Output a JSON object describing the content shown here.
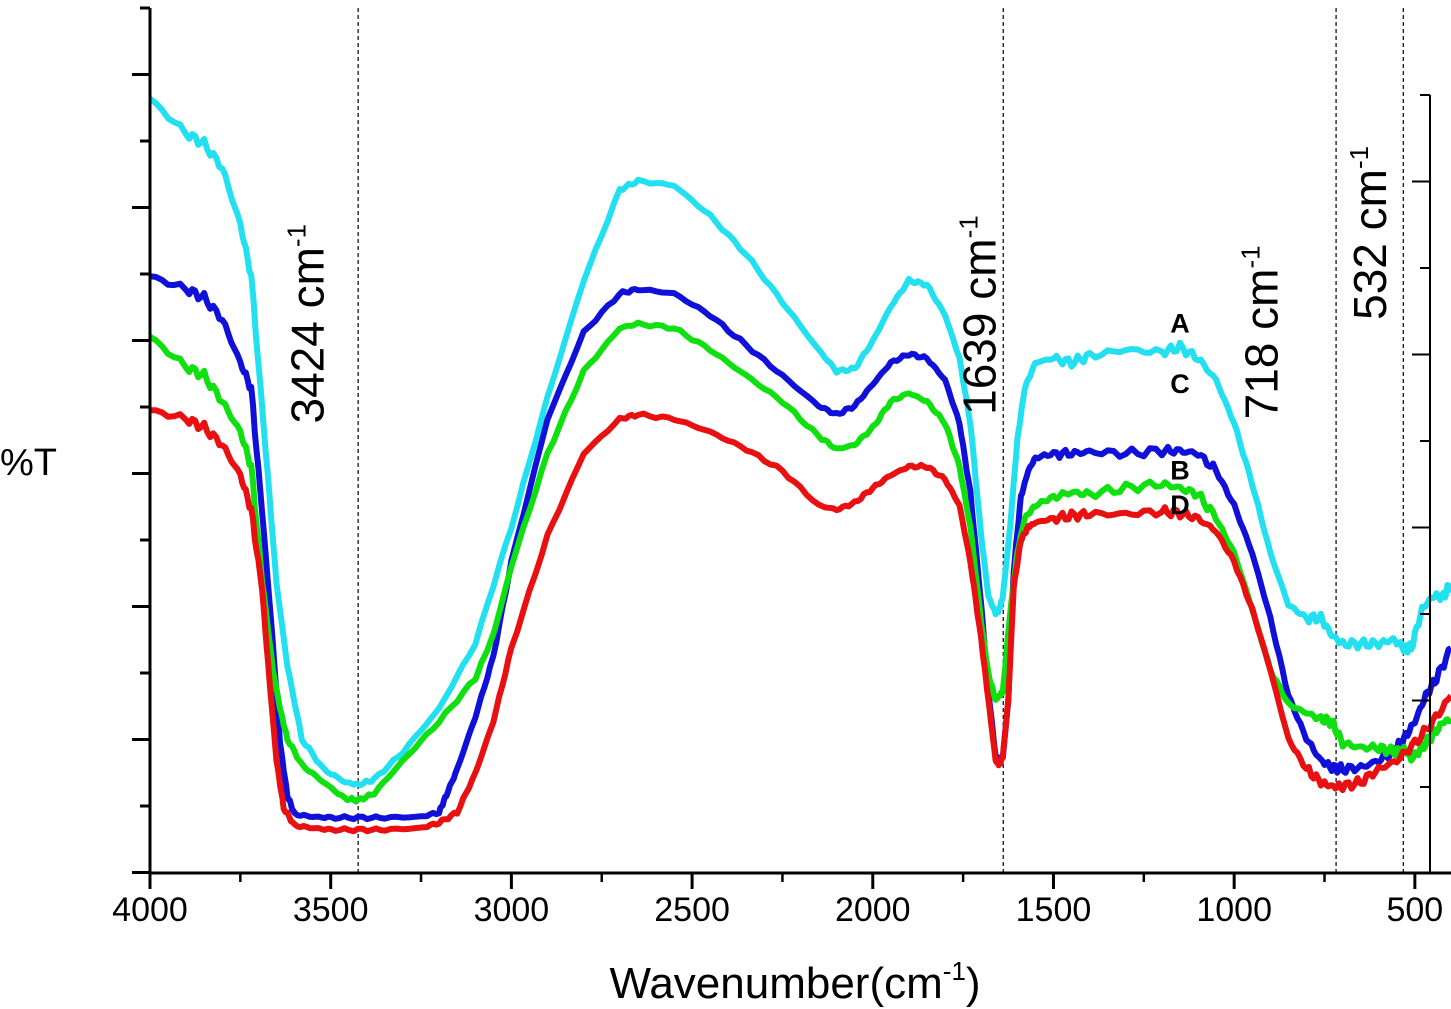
{
  "chart_data": {
    "type": "line",
    "xlabel": "Wavenumber(cm",
    "xlabel_sup": "-1",
    "xlabel_end": ")",
    "ylabel": "%T",
    "xlim": [
      4000,
      400
    ],
    "ylim": [
      0,
      100
    ],
    "x_ticks": [
      "4000",
      "3500",
      "3000",
      "2500",
      "2000",
      "1500",
      "1000",
      "500"
    ],
    "x_tick_values": [
      4000,
      3500,
      3000,
      2500,
      2000,
      1500,
      1000,
      500
    ],
    "colors": {
      "A": "#22e0f0",
      "B": "#1010d8",
      "C": "#10e010",
      "D": "#e81010"
    },
    "series": [
      {
        "name": "A",
        "color": "#22e0f0",
        "label_at": [
          1150,
          62.5
        ],
        "x": [
          4000,
          3900,
          3850,
          3800,
          3750,
          3720,
          3680,
          3650,
          3620,
          3580,
          3520,
          3460,
          3424,
          3380,
          3300,
          3200,
          3100,
          3000,
          2900,
          2800,
          2700,
          2650,
          2550,
          2450,
          2350,
          2250,
          2150,
          2100,
          2050,
          2000,
          1950,
          1900,
          1850,
          1800,
          1760,
          1730,
          1700,
          1680,
          1660,
          1650,
          1640,
          1620,
          1600,
          1580,
          1550,
          1500,
          1450,
          1400,
          1300,
          1200,
          1150,
          1100,
          1050,
          1000,
          950,
          900,
          850,
          800,
          760,
          730,
          700,
          650,
          600,
          560,
          530,
          510,
          480,
          450,
          420,
          400
        ],
        "y": [
          89.5,
          85.5,
          84.3,
          81.5,
          75.0,
          69.0,
          49.0,
          33.5,
          24.0,
          15.5,
          12.0,
          10.5,
          10.2,
          10.8,
          14.0,
          19.0,
          26.5,
          40.0,
          55.0,
          68.5,
          79.0,
          80.0,
          79.5,
          76.0,
          71.5,
          66.0,
          60.5,
          58.0,
          58.3,
          61.5,
          65.5,
          68.5,
          68.0,
          64.5,
          59.5,
          52.0,
          39.0,
          32.0,
          30.0,
          30.5,
          32.0,
          40.0,
          50.0,
          56.0,
          59.0,
          59.5,
          59.0,
          59.8,
          60.5,
          60.2,
          60.8,
          59.5,
          57.0,
          52.0,
          45.0,
          37.0,
          31.0,
          29.5,
          29.5,
          27.5,
          26.5,
          26.5,
          26.5,
          27.0,
          26.0,
          26.0,
          30.5,
          32.0,
          32.0,
          33.5
        ]
      },
      {
        "name": "B",
        "color": "#1010d8",
        "label_at": [
          1150,
          45.5
        ],
        "x": [
          4000,
          3900,
          3850,
          3800,
          3750,
          3720,
          3690,
          3660,
          3640,
          3620,
          3600,
          3550,
          3500,
          3424,
          3350,
          3250,
          3200,
          3180,
          3150,
          3100,
          3050,
          3000,
          2900,
          2800,
          2700,
          2650,
          2550,
          2450,
          2350,
          2250,
          2150,
          2100,
          2050,
          2000,
          1950,
          1900,
          1850,
          1800,
          1760,
          1730,
          1700,
          1680,
          1660,
          1650,
          1640,
          1625,
          1610,
          1590,
          1570,
          1550,
          1500,
          1450,
          1400,
          1300,
          1200,
          1150,
          1100,
          1050,
          1000,
          950,
          900,
          850,
          800,
          760,
          730,
          700,
          650,
          600,
          560,
          530,
          500,
          470,
          440,
          400
        ],
        "y": [
          69.0,
          67.5,
          66.5,
          64.0,
          59.0,
          56.0,
          42.0,
          26.5,
          15.0,
          9.0,
          6.8,
          6.5,
          6.4,
          6.4,
          6.4,
          6.5,
          7.0,
          9.0,
          12.0,
          18.0,
          25.0,
          36.0,
          52.5,
          62.5,
          67.0,
          67.5,
          67.0,
          64.5,
          61.0,
          57.5,
          54.0,
          53.0,
          54.0,
          56.5,
          59.0,
          60.0,
          59.5,
          57.0,
          52.0,
          44.0,
          31.0,
          21.0,
          13.5,
          13.0,
          13.5,
          20.0,
          35.0,
          43.5,
          46.5,
          48.0,
          48.5,
          48.5,
          48.7,
          48.5,
          48.8,
          48.8,
          48.5,
          46.5,
          42.5,
          37.0,
          29.5,
          20.5,
          15.5,
          13.0,
          12.2,
          12.0,
          12.2,
          13.0,
          14.0,
          15.5,
          17.5,
          20.5,
          22.5,
          26.0
        ]
      },
      {
        "name": "C",
        "color": "#10e010",
        "label_at": [
          1150,
          55.5
        ],
        "x": [
          4000,
          3900,
          3850,
          3800,
          3750,
          3720,
          3690,
          3660,
          3640,
          3620,
          3580,
          3520,
          3460,
          3424,
          3380,
          3300,
          3200,
          3100,
          3050,
          3000,
          2900,
          2800,
          2700,
          2650,
          2550,
          2450,
          2350,
          2250,
          2150,
          2100,
          2050,
          2000,
          1950,
          1900,
          1850,
          1800,
          1760,
          1730,
          1700,
          1680,
          1660,
          1650,
          1640,
          1620,
          1600,
          1580,
          1550,
          1500,
          1450,
          1400,
          1300,
          1200,
          1150,
          1100,
          1050,
          1000,
          950,
          900,
          850,
          800,
          760,
          730,
          700,
          650,
          600,
          560,
          530,
          510,
          480,
          450,
          420,
          400
        ],
        "y": [
          62.0,
          58.5,
          57.5,
          54.5,
          51.0,
          47.0,
          34.0,
          23.5,
          19.0,
          15.5,
          12.5,
          10.5,
          8.6,
          8.4,
          9.2,
          13.0,
          17.5,
          22.5,
          27.5,
          35.5,
          48.5,
          58.0,
          63.0,
          63.5,
          63.0,
          60.5,
          57.5,
          54.5,
          50.5,
          49.0,
          49.5,
          51.5,
          54.5,
          55.5,
          54.5,
          52.0,
          47.0,
          40.0,
          29.0,
          23.0,
          20.0,
          20.5,
          21.0,
          30.0,
          37.0,
          41.0,
          42.5,
          43.5,
          44.0,
          43.8,
          44.5,
          45.0,
          44.5,
          43.8,
          41.0,
          37.0,
          30.5,
          23.5,
          19.5,
          18.5,
          17.8,
          17.5,
          15.0,
          14.5,
          14.5,
          14.0,
          14.3,
          13.2,
          14.5,
          16.0,
          17.5,
          17.8
        ]
      },
      {
        "name": "D",
        "color": "#e81010",
        "label_at": [
          1150,
          41.5
        ],
        "x": [
          4000,
          3900,
          3850,
          3800,
          3750,
          3720,
          3690,
          3670,
          3650,
          3630,
          3600,
          3550,
          3500,
          3424,
          3350,
          3250,
          3200,
          3150,
          3100,
          3050,
          3000,
          2900,
          2800,
          2700,
          2650,
          2550,
          2450,
          2350,
          2250,
          2150,
          2100,
          2050,
          2000,
          1950,
          1900,
          1850,
          1800,
          1760,
          1730,
          1700,
          1680,
          1660,
          1650,
          1640,
          1625,
          1610,
          1590,
          1570,
          1550,
          1500,
          1450,
          1400,
          1300,
          1200,
          1150,
          1100,
          1050,
          1000,
          950,
          900,
          850,
          800,
          760,
          730,
          700,
          650,
          600,
          550,
          500,
          450,
          400
        ],
        "y": [
          53.5,
          52.5,
          51.5,
          49.5,
          46.0,
          42.0,
          33.0,
          22.5,
          13.0,
          7.5,
          5.5,
          5.2,
          5.0,
          5.0,
          5.0,
          5.2,
          5.8,
          7.0,
          11.5,
          17.5,
          26.0,
          39.0,
          48.5,
          52.5,
          53.0,
          52.5,
          51.0,
          49.0,
          46.5,
          42.5,
          42.0,
          42.8,
          44.5,
          46.0,
          47.0,
          47.0,
          45.5,
          42.5,
          36.0,
          27.0,
          20.0,
          13.0,
          12.5,
          13.5,
          20.0,
          33.0,
          38.5,
          40.0,
          40.5,
          41.0,
          41.3,
          41.5,
          41.5,
          41.8,
          41.6,
          41.0,
          39.5,
          36.0,
          30.5,
          23.5,
          15.5,
          12.0,
          10.5,
          10.0,
          10.0,
          10.5,
          12.0,
          13.0,
          15.0,
          17.5,
          20.5
        ]
      }
    ],
    "reference_lines": [
      {
        "x": 3424,
        "label": "3424 cm",
        "sup": "-1",
        "label_at": [
          3520,
          63.5
        ]
      },
      {
        "x": 1639,
        "label": "1639 cm",
        "sup": "-1",
        "label_at": [
          1660,
          64.5
        ]
      },
      {
        "x": 718,
        "label": "718 cm",
        "sup": "-1",
        "label_at": [
          880,
          62.5
        ]
      },
      {
        "x": 532,
        "label": "532 cm",
        "sup": "-1",
        "label_at": [
          580,
          74.0
        ]
      }
    ]
  }
}
